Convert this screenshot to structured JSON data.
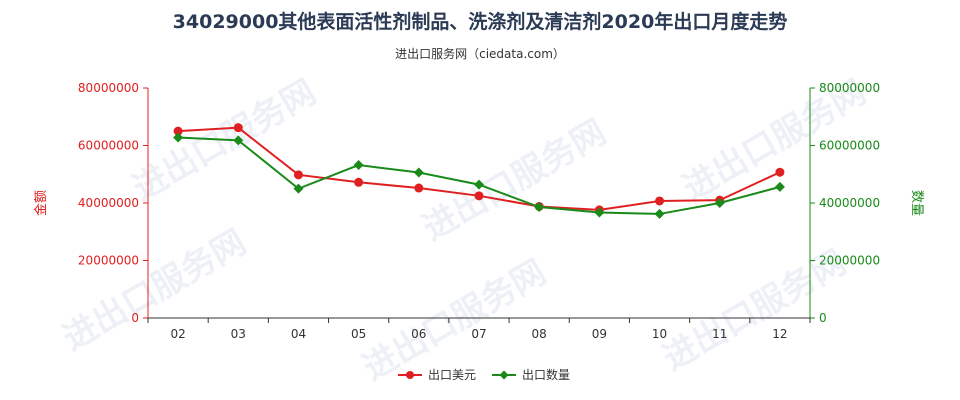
{
  "chart_data": {
    "type": "line",
    "title": "34029000其他表面活性剂制品、洗涤剂及清洁剂2020年出口月度走势",
    "subtitle": "进出口服务网（ciedata.com）",
    "watermark": "进出口服务网",
    "categories": [
      "02",
      "03",
      "04",
      "05",
      "06",
      "07",
      "08",
      "09",
      "10",
      "11",
      "12"
    ],
    "y_left": {
      "label": "金额",
      "ylim": [
        0,
        80000000
      ],
      "ticks": [
        "0",
        "20000000",
        "40000000",
        "60000000",
        "80000000"
      ],
      "color": "#e02020"
    },
    "y_right": {
      "label": "数量",
      "ylim": [
        0,
        80000000
      ],
      "ticks": [
        "0",
        "20000000",
        "40000000",
        "60000000",
        "80000000"
      ],
      "color": "#1a8a1a"
    },
    "series": [
      {
        "name": "出口美元",
        "axis": "left",
        "color": "#e02020",
        "marker": "circle",
        "values": [
          65000000,
          66200000,
          49800000,
          47200000,
          45200000,
          42500000,
          38800000,
          37600000,
          40700000,
          41000000,
          50700000
        ]
      },
      {
        "name": "出口数量",
        "axis": "right",
        "color": "#1a8a1a",
        "marker": "diamond",
        "values": [
          62800000,
          61800000,
          45000000,
          53200000,
          50600000,
          46400000,
          38600000,
          36700000,
          36200000,
          40000000,
          45600000
        ]
      }
    ],
    "grid": false,
    "legend": "bottom-center"
  }
}
